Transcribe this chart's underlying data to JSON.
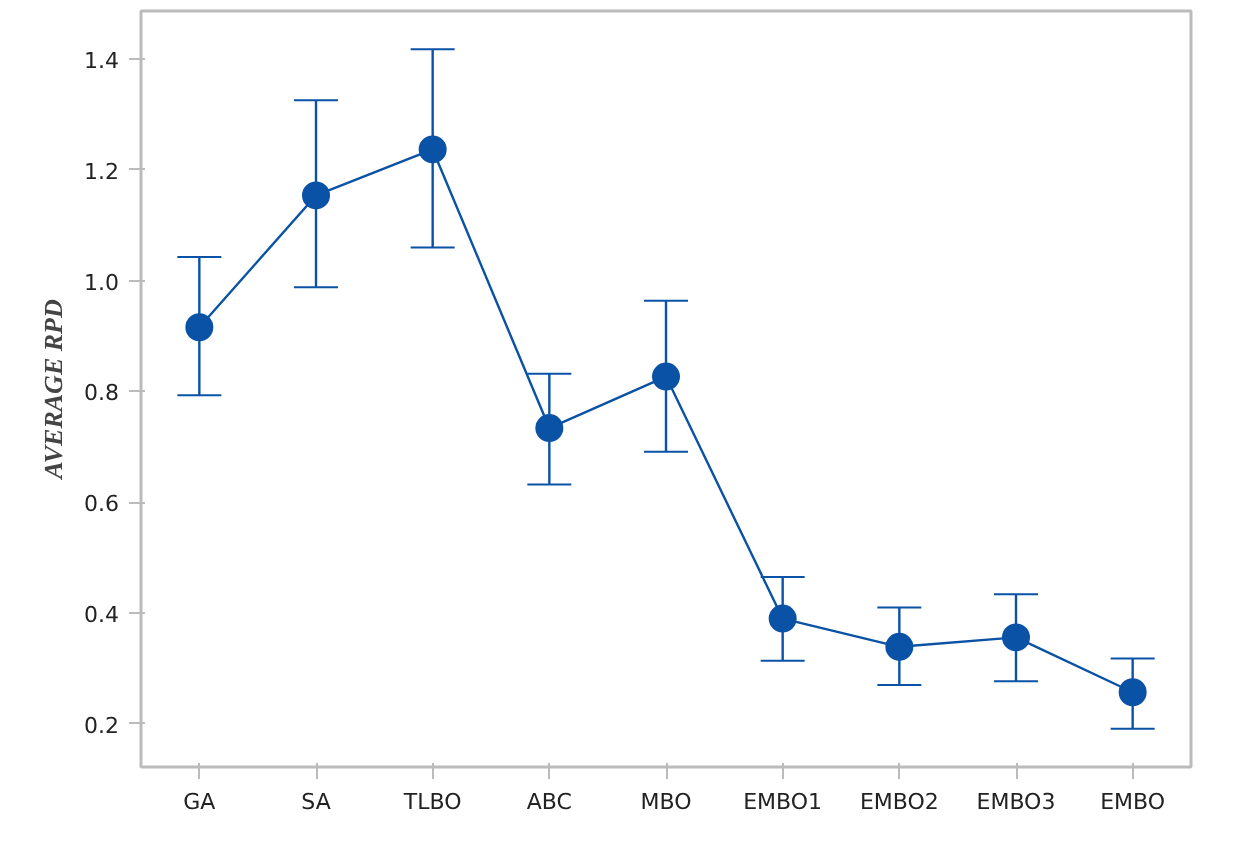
{
  "chart_data": {
    "type": "line",
    "ylabel": "AVERAGE RPD",
    "categories": [
      "GA",
      "SA",
      "TLBO",
      "ABC",
      "MBO",
      "EMBO1",
      "EMBO2",
      "EMBO3",
      "EMBO"
    ],
    "series": [
      {
        "color": "#0a52a5",
        "values": [
          0.916,
          1.154,
          1.237,
          0.734,
          0.827,
          0.39,
          0.339,
          0.356,
          0.257
        ],
        "errors": [
          [
            0.793,
            1.043
          ],
          [
            0.988,
            1.326
          ],
          [
            1.06,
            1.418
          ],
          [
            0.632,
            0.832
          ],
          [
            0.691,
            0.964
          ],
          [
            0.314,
            0.465
          ],
          [
            0.27,
            0.41
          ],
          [
            0.277,
            0.434
          ],
          [
            0.191,
            0.318
          ]
        ]
      }
    ],
    "ylim": [
      0.122,
      1.487
    ],
    "yticks": [
      0.2,
      0.4,
      0.6,
      0.8,
      {
        "value": 1.0,
        "label": "1.0"
      },
      1.2,
      1.4
    ],
    "marker": "circle",
    "grid": false
  }
}
